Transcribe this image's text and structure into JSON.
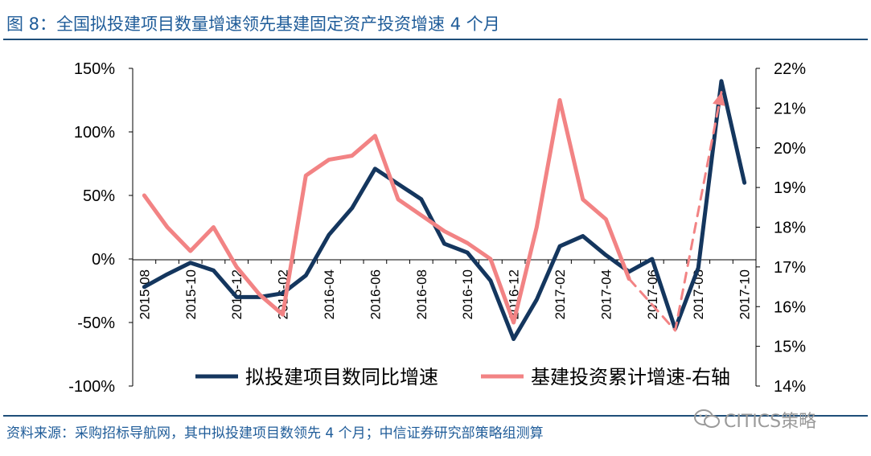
{
  "title": "图 8：全国拟投建项目数量增速领先基建固定资产投资增速 4 个月",
  "source": "资料来源：采购招标导航网，其中拟投建项目数领先 4 个月；中信证券研究部策略组测算",
  "watermark": "CITICS策略",
  "chart_data": {
    "type": "line",
    "x": [
      "2015-08",
      "2015-09",
      "2015-10",
      "2015-11",
      "2015-12",
      "2016-01",
      "2016-02",
      "2016-03",
      "2016-04",
      "2016-05",
      "2016-06",
      "2016-07",
      "2016-08",
      "2016-09",
      "2016-10",
      "2016-11",
      "2016-12",
      "2017-01",
      "2017-02",
      "2017-03",
      "2017-04",
      "2017-05",
      "2017-06",
      "2017-07",
      "2017-08",
      "2017-09",
      "2017-10"
    ],
    "tick_labels": [
      "2015-08",
      "2015-10",
      "2015-12",
      "2016-02",
      "2016-04",
      "2016-06",
      "2016-08",
      "2016-10",
      "2016-12",
      "2017-02",
      "2017-04",
      "2017-06",
      "2017-08",
      "2017-10"
    ],
    "left_axis": {
      "range": [
        -1.0,
        1.5
      ],
      "ticks": [
        "-100%",
        "-50%",
        "0%",
        "50%",
        "100%",
        "150%"
      ],
      "tick_values": [
        -1.0,
        -0.5,
        0,
        0.5,
        1.0,
        1.5
      ]
    },
    "right_axis": {
      "range": [
        14,
        22
      ],
      "ticks": [
        "14%",
        "15%",
        "16%",
        "17%",
        "18%",
        "19%",
        "20%",
        "21%",
        "22%"
      ],
      "tick_values": [
        14,
        15,
        16,
        17,
        18,
        19,
        20,
        21,
        22
      ]
    },
    "series": [
      {
        "name": "拟投建项目数同比增速",
        "axis": "left",
        "color": "#14365e",
        "width": 5,
        "values": [
          -0.22,
          -0.12,
          -0.03,
          -0.09,
          -0.3,
          -0.3,
          -0.27,
          -0.13,
          0.19,
          0.4,
          0.71,
          0.59,
          0.47,
          0.12,
          0.05,
          -0.17,
          -0.63,
          -0.32,
          0.1,
          0.18,
          0.03,
          -0.1,
          0.0,
          -0.55,
          -0.07,
          1.4,
          0.6
        ]
      },
      {
        "name": "基建投资累计增速-右轴",
        "axis": "right",
        "color": "#f28384",
        "width": 5,
        "values": [
          18.8,
          18.0,
          17.4,
          18.0,
          17.0,
          16.3,
          15.8,
          19.3,
          19.7,
          19.8,
          20.3,
          18.7,
          18.3,
          17.9,
          17.6,
          17.2,
          15.6,
          18.0,
          21.2,
          18.7,
          18.2,
          16.7,
          null,
          null,
          null,
          null,
          null
        ]
      },
      {
        "name": "forecast-dashed",
        "axis": "right",
        "color": "#f28384",
        "width": 3,
        "dashed": true,
        "points": [
          [
            "2017-05",
            16.7
          ],
          [
            "2017-07",
            15.4
          ],
          [
            "2017-09",
            21.4
          ]
        ]
      }
    ],
    "legend": {
      "placement": "bottom-center",
      "labels": [
        "拟投建项目数同比增速",
        "基建投资累计增速-右轴"
      ]
    },
    "grid": false
  }
}
